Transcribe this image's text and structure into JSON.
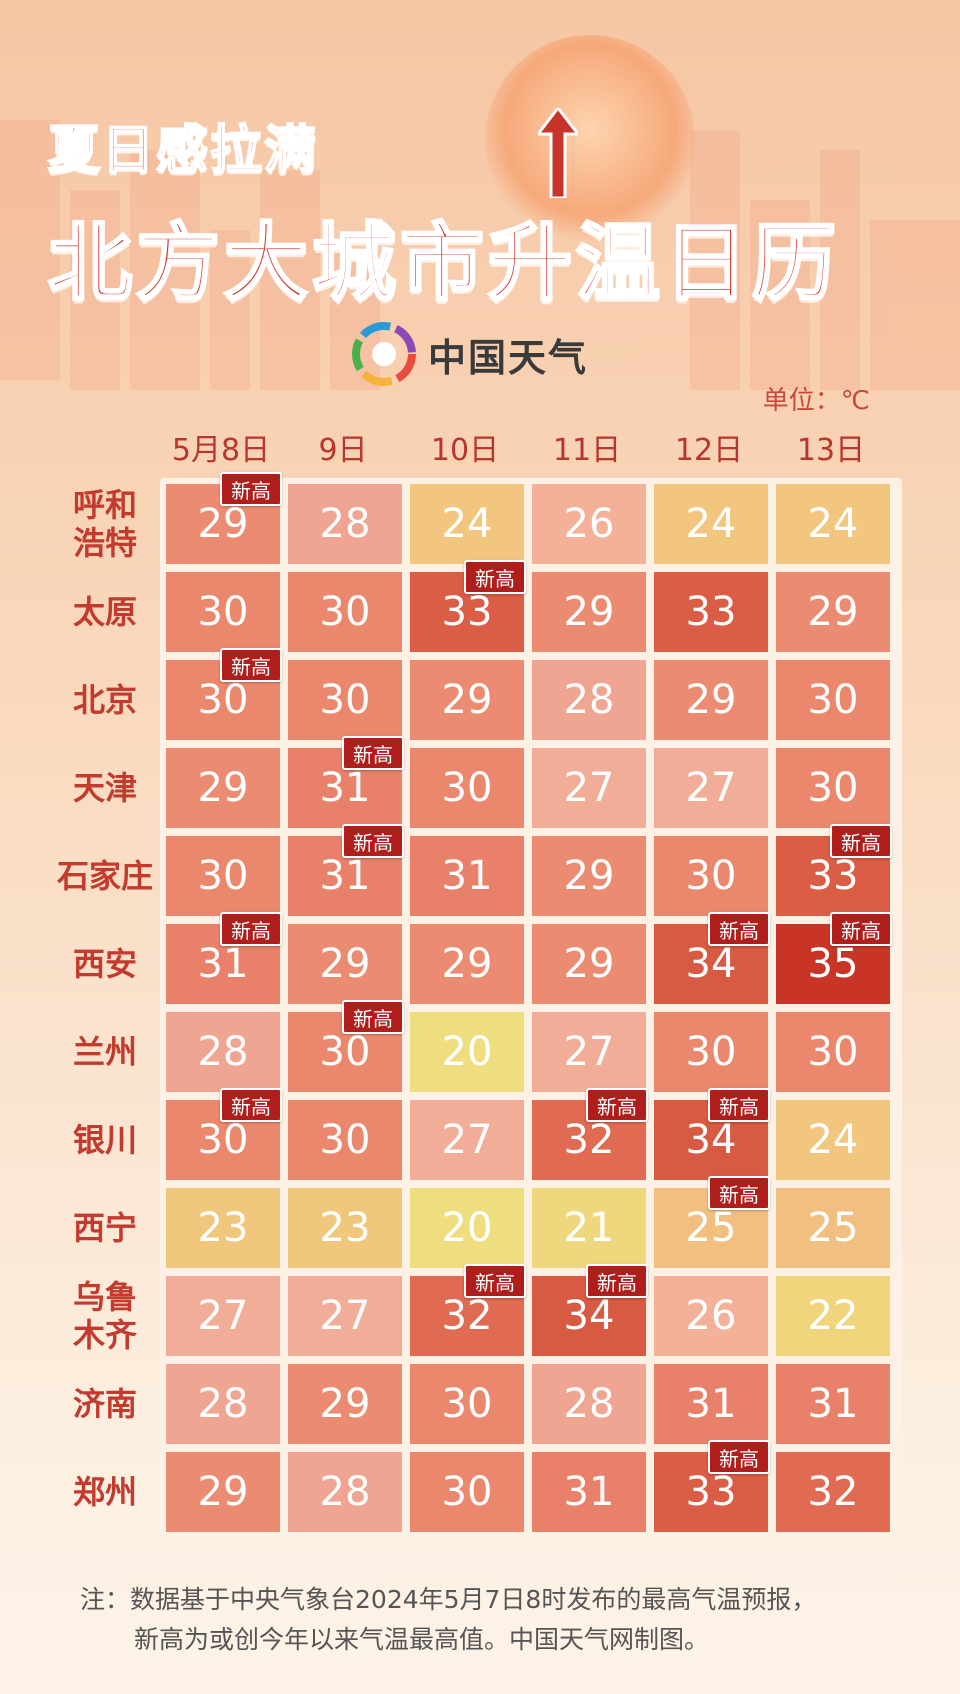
{
  "header": {
    "title_line1": "夏日感拉满",
    "title_line2": "北方大城市升温日历",
    "logo_text": "中国天气",
    "unit": "单位：℃"
  },
  "dates": [
    "5月8日",
    "9日",
    "10日",
    "11日",
    "12日",
    "13日"
  ],
  "badge_text": "新高",
  "rows": [
    {
      "city": "呼和\n浩特",
      "city_l1": "呼和",
      "city_l2": "浩特",
      "temps": [
        29,
        28,
        24,
        26,
        24,
        24
      ],
      "highs": [
        0
      ]
    },
    {
      "city": "太原",
      "temps": [
        30,
        30,
        33,
        29,
        33,
        29
      ],
      "highs": [
        2
      ]
    },
    {
      "city": "北京",
      "temps": [
        30,
        30,
        29,
        28,
        29,
        30
      ],
      "highs": [
        0
      ]
    },
    {
      "city": "天津",
      "temps": [
        29,
        31,
        30,
        27,
        27,
        30
      ],
      "highs": [
        1
      ]
    },
    {
      "city": "石家庄",
      "temps": [
        30,
        31,
        31,
        29,
        30,
        33
      ],
      "highs": [
        1,
        5
      ]
    },
    {
      "city": "西安",
      "temps": [
        31,
        29,
        29,
        29,
        34,
        35
      ],
      "highs": [
        0,
        4,
        5
      ]
    },
    {
      "city": "兰州",
      "temps": [
        28,
        30,
        20,
        27,
        30,
        30
      ],
      "highs": [
        1
      ]
    },
    {
      "city": "银川",
      "temps": [
        30,
        30,
        27,
        32,
        34,
        24
      ],
      "highs": [
        0,
        3,
        4
      ]
    },
    {
      "city": "西宁",
      "temps": [
        23,
        23,
        20,
        21,
        25,
        25
      ],
      "highs": [
        4
      ]
    },
    {
      "city": "乌鲁\n木齐",
      "city_l1": "乌鲁",
      "city_l2": "木齐",
      "temps": [
        27,
        27,
        32,
        34,
        26,
        22
      ],
      "highs": [
        2,
        3
      ]
    },
    {
      "city": "济南",
      "temps": [
        28,
        29,
        30,
        28,
        31,
        31
      ],
      "highs": []
    },
    {
      "city": "郑州",
      "temps": [
        29,
        28,
        30,
        31,
        33,
        32
      ],
      "highs": [
        4
      ]
    }
  ],
  "color_scale": {
    "20": "#efde80",
    "21": "#efd77e",
    "22": "#f0d57c",
    "23": "#f1c77d",
    "24": "#f2c67e",
    "25": "#f1bf7f",
    "26": "#f2b198",
    "27": "#f1ad98",
    "28": "#f0a592",
    "29": "#eb8c72",
    "30": "#ea876c",
    "31": "#e8806a",
    "32": "#e06a52",
    "33": "#dc5d45",
    "34": "#d95a42",
    "35": "#c83527"
  },
  "note_line1": "注：数据基于中央气象台2024年5月7日8时发布的最高气温预报，",
  "note_line2": "新高为或创今年以来气温最高值。中国天气网制图。"
}
